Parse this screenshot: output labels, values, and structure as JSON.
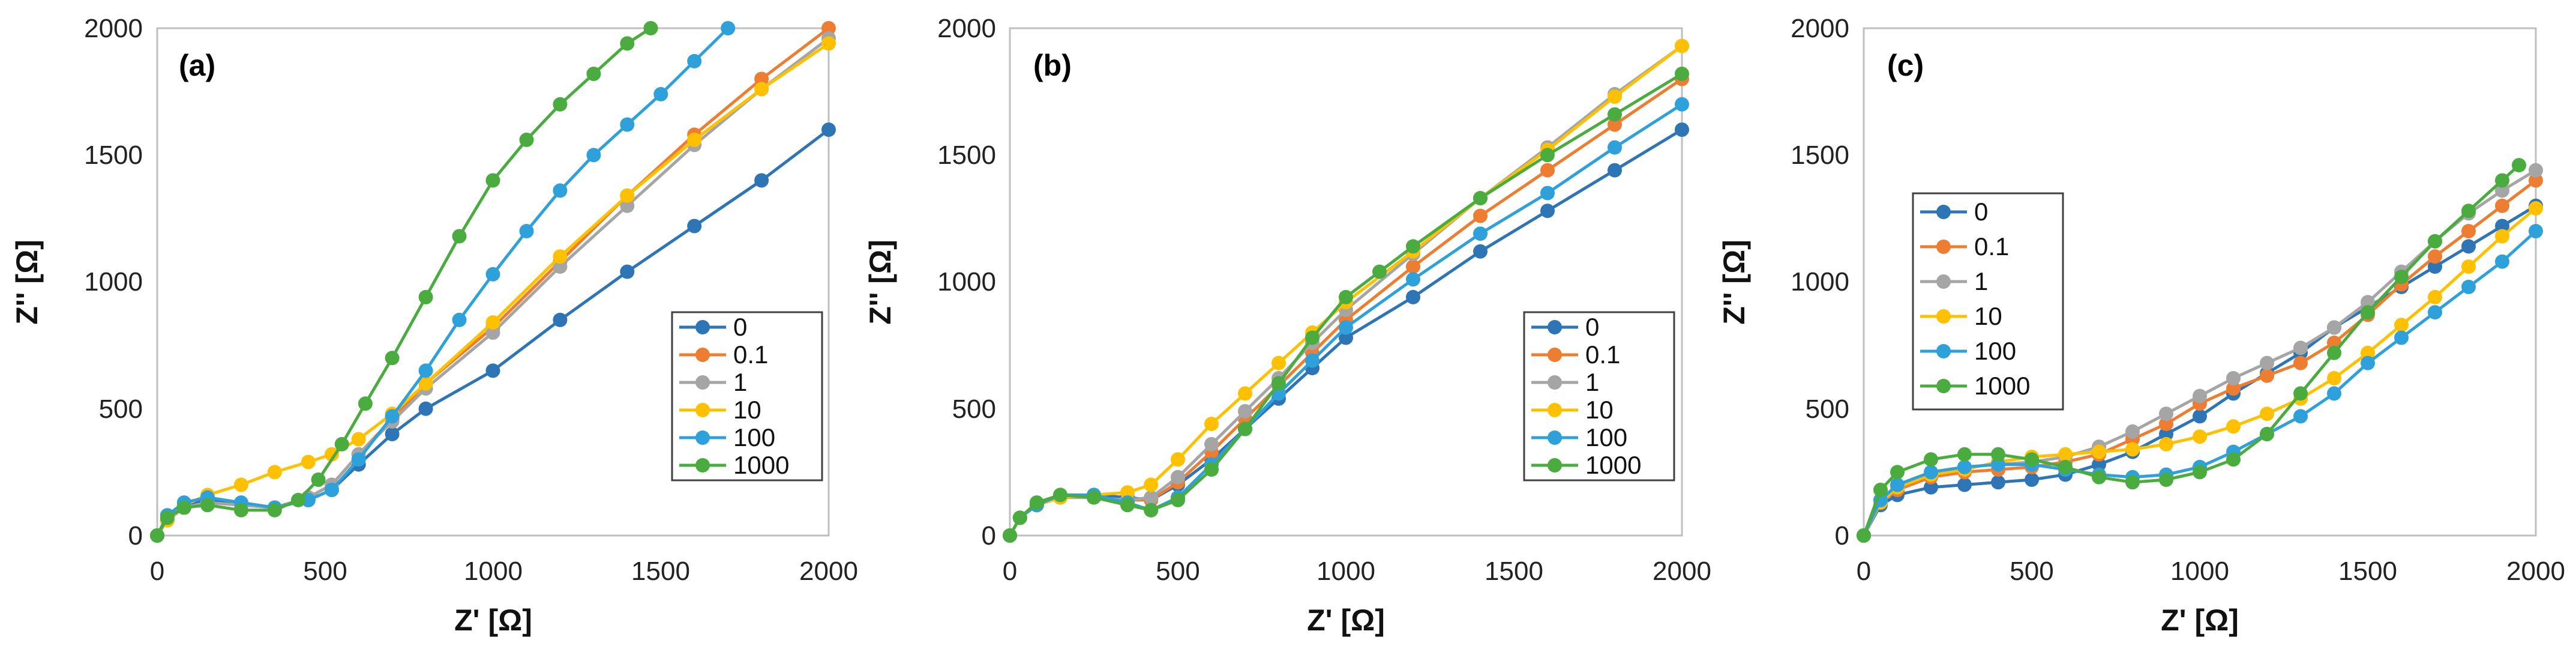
{
  "series_colors": {
    "0": "#2e75b6",
    "0.1": "#ed7d31",
    "1": "#a5a5a5",
    "10": "#ffc000",
    "100": "#2ea1db",
    "1000": "#4aab3f"
  },
  "chart_data": [
    {
      "type": "scatter",
      "panel_label": "(a)",
      "xlabel": "Z' [Ω]",
      "ylabel": "Z'' [Ω]",
      "xlim": [
        0,
        2000
      ],
      "ylim": [
        0,
        2000
      ],
      "xticks": [
        "0",
        "500",
        "1000",
        "1500",
        "2000"
      ],
      "yticks": [
        "0",
        "500",
        "1000",
        "1500",
        "2000"
      ],
      "legend_position": "bottom-right",
      "series": [
        {
          "name": "0",
          "x": [
            0,
            30,
            80,
            150,
            250,
            350,
            450,
            520,
            600,
            700,
            800,
            1000,
            1200,
            1400,
            1600,
            1800,
            2000
          ],
          "y": [
            0,
            60,
            120,
            140,
            120,
            110,
            140,
            180,
            280,
            400,
            500,
            650,
            850,
            1040,
            1220,
            1400,
            1600
          ]
        },
        {
          "name": "0.1",
          "x": [
            0,
            30,
            80,
            150,
            250,
            350,
            450,
            520,
            600,
            700,
            800,
            1000,
            1200,
            1400,
            1600,
            1800,
            2000
          ],
          "y": [
            0,
            60,
            110,
            130,
            120,
            110,
            150,
            200,
            320,
            460,
            600,
            820,
            1080,
            1340,
            1580,
            1800,
            2000
          ]
        },
        {
          "name": "1",
          "x": [
            0,
            30,
            80,
            150,
            250,
            350,
            450,
            520,
            600,
            700,
            800,
            1000,
            1200,
            1400,
            1600,
            1800,
            2000
          ],
          "y": [
            0,
            60,
            110,
            130,
            120,
            110,
            150,
            200,
            320,
            450,
            580,
            800,
            1060,
            1300,
            1540,
            1760,
            1960
          ]
        },
        {
          "name": "10",
          "x": [
            0,
            30,
            80,
            150,
            250,
            350,
            450,
            520,
            600,
            700,
            800,
            1000,
            1200,
            1400,
            1600,
            1800,
            2000
          ],
          "y": [
            0,
            60,
            120,
            160,
            200,
            250,
            290,
            320,
            380,
            480,
            600,
            840,
            1100,
            1340,
            1560,
            1760,
            1940
          ]
        },
        {
          "name": "100",
          "x": [
            0,
            30,
            80,
            150,
            250,
            350,
            450,
            520,
            600,
            700,
            800,
            900,
            1000,
            1100,
            1200,
            1300,
            1400,
            1500,
            1600,
            1700
          ],
          "y": [
            0,
            80,
            130,
            150,
            130,
            110,
            140,
            180,
            300,
            470,
            650,
            850,
            1030,
            1200,
            1360,
            1500,
            1620,
            1740,
            1870,
            2000
          ]
        },
        {
          "name": "1000",
          "x": [
            0,
            30,
            80,
            150,
            250,
            350,
            420,
            480,
            550,
            620,
            700,
            800,
            900,
            1000,
            1100,
            1200,
            1300,
            1400,
            1470
          ],
          "y": [
            0,
            70,
            110,
            120,
            100,
            100,
            140,
            220,
            360,
            520,
            700,
            940,
            1180,
            1400,
            1560,
            1700,
            1820,
            1940,
            2000
          ]
        }
      ]
    },
    {
      "type": "scatter",
      "panel_label": "(b)",
      "xlabel": "Z' [Ω]",
      "ylabel": "Z'' [Ω]",
      "xlim": [
        0,
        2000
      ],
      "ylim": [
        0,
        2000
      ],
      "xticks": [
        "0",
        "500",
        "1000",
        "1500",
        "2000"
      ],
      "yticks": [
        "0",
        "500",
        "1000",
        "1500",
        "2000"
      ],
      "legend_position": "bottom-right",
      "series": [
        {
          "name": "0",
          "x": [
            0,
            30,
            80,
            150,
            250,
            350,
            420,
            500,
            600,
            700,
            800,
            900,
            1000,
            1200,
            1400,
            1600,
            1800,
            2000
          ],
          "y": [
            0,
            70,
            120,
            150,
            160,
            150,
            140,
            200,
            300,
            420,
            540,
            660,
            780,
            940,
            1120,
            1280,
            1440,
            1600
          ]
        },
        {
          "name": "0.1",
          "x": [
            0,
            30,
            80,
            150,
            250,
            350,
            420,
            500,
            600,
            700,
            800,
            900,
            1000,
            1200,
            1400,
            1600,
            1800,
            2000
          ],
          "y": [
            0,
            70,
            120,
            150,
            150,
            140,
            140,
            210,
            330,
            460,
            590,
            720,
            850,
            1060,
            1260,
            1440,
            1620,
            1800
          ]
        },
        {
          "name": "1",
          "x": [
            0,
            30,
            80,
            150,
            250,
            350,
            420,
            500,
            600,
            700,
            800,
            900,
            1000,
            1200,
            1400,
            1600,
            1800,
            2000
          ],
          "y": [
            0,
            70,
            120,
            150,
            150,
            140,
            150,
            230,
            360,
            490,
            620,
            760,
            890,
            1110,
            1330,
            1530,
            1740,
            1930
          ]
        },
        {
          "name": "10",
          "x": [
            0,
            30,
            80,
            150,
            250,
            350,
            420,
            500,
            600,
            700,
            800,
            900,
            1000,
            1200,
            1400,
            1600,
            1800,
            2000
          ],
          "y": [
            0,
            70,
            120,
            150,
            160,
            170,
            200,
            300,
            440,
            560,
            680,
            800,
            920,
            1120,
            1330,
            1520,
            1730,
            1930
          ]
        },
        {
          "name": "100",
          "x": [
            0,
            30,
            80,
            150,
            250,
            350,
            420,
            500,
            600,
            700,
            800,
            900,
            1000,
            1200,
            1400,
            1600,
            1800,
            2000
          ],
          "y": [
            0,
            70,
            120,
            160,
            160,
            130,
            100,
            150,
            280,
            420,
            560,
            690,
            820,
            1010,
            1190,
            1350,
            1530,
            1700
          ]
        },
        {
          "name": "1000",
          "x": [
            0,
            30,
            80,
            150,
            250,
            350,
            420,
            500,
            600,
            700,
            800,
            900,
            1000,
            1100,
            1200,
            1400,
            1600,
            1800,
            2000
          ],
          "y": [
            0,
            70,
            130,
            160,
            150,
            120,
            100,
            140,
            260,
            420,
            600,
            780,
            940,
            1040,
            1140,
            1330,
            1500,
            1660,
            1820
          ]
        }
      ]
    },
    {
      "type": "scatter",
      "panel_label": "(c)",
      "xlabel": "Z' [Ω]",
      "ylabel": "Z'' [Ω]",
      "xlim": [
        0,
        2000
      ],
      "ylim": [
        0,
        2000
      ],
      "xticks": [
        "0",
        "500",
        "1000",
        "1500",
        "2000"
      ],
      "yticks": [
        "0",
        "500",
        "1000",
        "1500",
        "2000"
      ],
      "legend_position": "top-left",
      "series": [
        {
          "name": "0",
          "x": [
            0,
            50,
            100,
            200,
            300,
            400,
            500,
            600,
            700,
            800,
            900,
            1000,
            1100,
            1200,
            1300,
            1400,
            1500,
            1600,
            1700,
            1800,
            1900,
            2000
          ],
          "y": [
            0,
            120,
            160,
            190,
            200,
            210,
            220,
            240,
            280,
            330,
            400,
            470,
            560,
            640,
            720,
            820,
            900,
            980,
            1060,
            1140,
            1220,
            1300
          ]
        },
        {
          "name": "0.1",
          "x": [
            0,
            50,
            100,
            200,
            300,
            400,
            500,
            600,
            700,
            800,
            900,
            1000,
            1100,
            1200,
            1300,
            1400,
            1500,
            1600,
            1700,
            1800,
            1900,
            2000
          ],
          "y": [
            0,
            130,
            180,
            230,
            250,
            260,
            270,
            290,
            320,
            380,
            440,
            520,
            580,
            630,
            680,
            760,
            870,
            990,
            1100,
            1200,
            1300,
            1400
          ]
        },
        {
          "name": "1",
          "x": [
            0,
            50,
            100,
            200,
            300,
            400,
            500,
            600,
            700,
            800,
            900,
            1000,
            1100,
            1200,
            1300,
            1400,
            1500,
            1600,
            1700,
            1800,
            1900,
            2000
          ],
          "y": [
            0,
            140,
            190,
            240,
            270,
            280,
            290,
            310,
            350,
            410,
            480,
            550,
            620,
            680,
            740,
            820,
            920,
            1040,
            1160,
            1270,
            1360,
            1440
          ]
        },
        {
          "name": "10",
          "x": [
            0,
            50,
            100,
            200,
            300,
            400,
            500,
            600,
            700,
            800,
            900,
            1000,
            1100,
            1200,
            1300,
            1400,
            1500,
            1600,
            1700,
            1800,
            1900,
            2000
          ],
          "y": [
            0,
            130,
            190,
            240,
            260,
            290,
            310,
            320,
            330,
            340,
            360,
            390,
            430,
            480,
            540,
            620,
            720,
            830,
            940,
            1060,
            1180,
            1290
          ]
        },
        {
          "name": "100",
          "x": [
            0,
            50,
            100,
            200,
            300,
            400,
            500,
            600,
            700,
            800,
            900,
            1000,
            1100,
            1200,
            1300,
            1400,
            1500,
            1600,
            1700,
            1800,
            1900,
            2000
          ],
          "y": [
            0,
            140,
            200,
            250,
            270,
            280,
            280,
            260,
            240,
            230,
            240,
            270,
            330,
            400,
            470,
            560,
            680,
            780,
            880,
            980,
            1080,
            1200
          ]
        },
        {
          "name": "1000",
          "x": [
            0,
            50,
            100,
            200,
            300,
            400,
            500,
            600,
            700,
            800,
            900,
            1000,
            1100,
            1200,
            1300,
            1400,
            1500,
            1600,
            1700,
            1800,
            1900,
            1950
          ],
          "y": [
            0,
            180,
            250,
            300,
            320,
            320,
            300,
            270,
            230,
            210,
            220,
            250,
            300,
            400,
            560,
            720,
            880,
            1020,
            1160,
            1280,
            1400,
            1460
          ]
        }
      ]
    }
  ],
  "legend_entries": [
    "0",
    "0.1",
    "1",
    "10",
    "100",
    "1000"
  ]
}
